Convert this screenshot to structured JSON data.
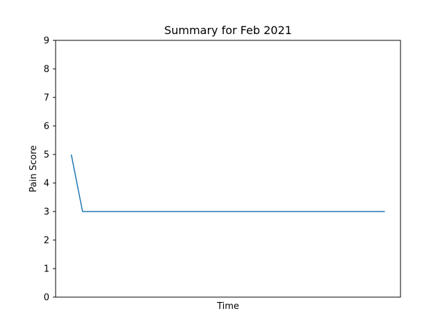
{
  "chart_data": {
    "type": "line",
    "title": "Summary for Feb 2021",
    "xlabel": "Time",
    "ylabel": "Pain Score",
    "ylim": [
      0,
      9
    ],
    "yticks": [
      0,
      1,
      2,
      3,
      4,
      5,
      6,
      7,
      8,
      9
    ],
    "xticks": [],
    "grid": false,
    "series": [
      {
        "color": "#1f77b4",
        "values": [
          5,
          3,
          3
        ]
      }
    ],
    "x_relative": [
      0,
      0.036,
      1
    ]
  }
}
